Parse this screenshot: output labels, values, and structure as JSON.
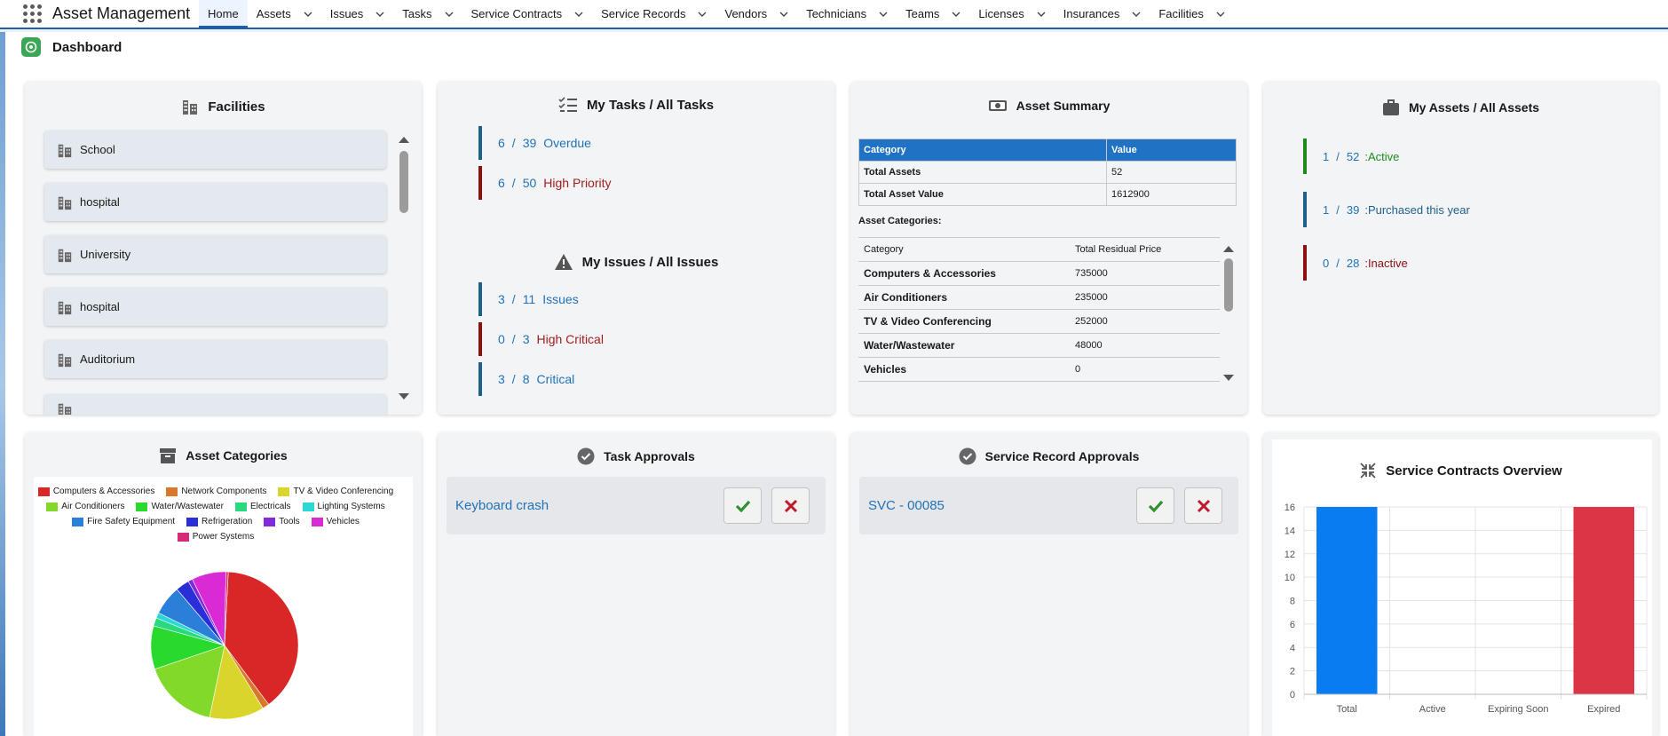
{
  "app": {
    "name": "Asset Management"
  },
  "nav": [
    {
      "label": "Home",
      "dropdown": false,
      "active": true
    },
    {
      "label": "Assets",
      "dropdown": true
    },
    {
      "label": "Issues",
      "dropdown": true
    },
    {
      "label": "Tasks",
      "dropdown": true
    },
    {
      "label": "Service Contracts",
      "dropdown": true
    },
    {
      "label": "Service Records",
      "dropdown": true
    },
    {
      "label": "Vendors",
      "dropdown": true
    },
    {
      "label": "Technicians",
      "dropdown": true
    },
    {
      "label": "Teams",
      "dropdown": true
    },
    {
      "label": "Licenses",
      "dropdown": true
    },
    {
      "label": "Insurances",
      "dropdown": true
    },
    {
      "label": "Facilities",
      "dropdown": true
    }
  ],
  "dashboard": {
    "title": "Dashboard"
  },
  "facilities": {
    "title": "Facilities",
    "items": [
      "School",
      "hospital",
      "University",
      "hospital",
      "Auditorium"
    ]
  },
  "tasks": {
    "title": "My Tasks / All Tasks",
    "rows": [
      {
        "mine": "6",
        "sep": "/",
        "all": "39",
        "label": "Overdue",
        "tone": "blue"
      },
      {
        "mine": "6",
        "sep": "/",
        "all": "50",
        "label": "High Priority",
        "tone": "red"
      }
    ]
  },
  "issues": {
    "title": "My Issues / All Issues",
    "rows": [
      {
        "mine": "3",
        "sep": "/",
        "all": "11",
        "label": "Issues",
        "tone": "blue"
      },
      {
        "mine": "0",
        "sep": "/",
        "all": "3",
        "label": "High Critical",
        "tone": "red"
      },
      {
        "mine": "3",
        "sep": "/",
        "all": "8",
        "label": "Critical",
        "tone": "blue"
      }
    ]
  },
  "asset_summary": {
    "title": "Asset Summary",
    "headers": [
      "Category",
      "Value"
    ],
    "rows": [
      [
        "Total Assets",
        "52"
      ],
      [
        "Total Asset Value",
        "1612900"
      ]
    ],
    "categories_label": "Asset Categories:",
    "cat_headers": [
      "Category",
      "Total Residual Price"
    ],
    "cat_rows": [
      [
        "Computers & Accessories",
        "735000"
      ],
      [
        "Air Conditioners",
        "235000"
      ],
      [
        "TV & Video Conferencing",
        "252000"
      ],
      [
        "Water/Wastewater",
        "48000"
      ],
      [
        "Vehicles",
        "0"
      ]
    ]
  },
  "my_assets": {
    "title": "My Assets / All Assets",
    "rows": [
      {
        "mine": "1",
        "sep": "/",
        "all": "52",
        "label": ":Active",
        "color": "#1e8a1e"
      },
      {
        "mine": "1",
        "sep": "/",
        "all": "39",
        "label": ":Purchased this year",
        "color": "#1f5f8b"
      },
      {
        "mine": "0",
        "sep": "/",
        "all": "28",
        "label": ":Inactive",
        "color": "#8b1010"
      }
    ]
  },
  "asset_categories": {
    "title": "Asset Categories",
    "legend": [
      {
        "label": "Computers & Accessories",
        "color": "#d92727"
      },
      {
        "label": "Network Components",
        "color": "#d9782a"
      },
      {
        "label": "TV & Video Conferencing",
        "color": "#d9d52a"
      },
      {
        "label": "Air Conditioners",
        "color": "#82d92a"
      },
      {
        "label": "Water/Wastewater",
        "color": "#2ad92e"
      },
      {
        "label": "Electricals",
        "color": "#2ad97f"
      },
      {
        "label": "Lighting Systems",
        "color": "#2ad9d3"
      },
      {
        "label": "Fire Safety Equipment",
        "color": "#2a7fd9"
      },
      {
        "label": "Refrigeration",
        "color": "#2a2ed9"
      },
      {
        "label": "Tools",
        "color": "#822ad9"
      },
      {
        "label": "Vehicles",
        "color": "#d92ad5"
      },
      {
        "label": "Power Systems",
        "color": "#d92a78"
      }
    ]
  },
  "task_approvals": {
    "title": "Task Approvals",
    "items": [
      "Keyboard crash"
    ]
  },
  "service_record_approvals": {
    "title": "Service Record Approvals",
    "items": [
      "SVC - 00085"
    ]
  },
  "chart_data": {
    "type": "bar",
    "title": "Service Contracts Overview",
    "categories": [
      "Total",
      "Active",
      "Expiring Soon",
      "Expired"
    ],
    "values": [
      16,
      0,
      0,
      16
    ],
    "colors": [
      "#0a7cf2",
      "#0a7cf2",
      "#0a7cf2",
      "#dc3545"
    ],
    "ylim": [
      0,
      16
    ],
    "yticks": [
      0,
      2,
      4,
      6,
      8,
      10,
      12,
      14,
      16
    ],
    "grid": true
  }
}
